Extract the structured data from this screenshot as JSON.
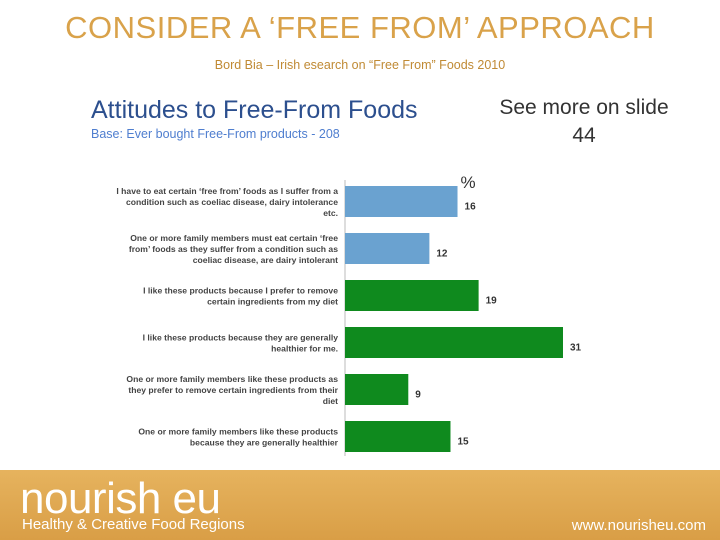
{
  "slide": {
    "title": "CONSIDER A ‘FREE FROM’ APPROACH",
    "subtitle": "Bord Bia – Irish  esearch on “Free From” Foods 2010",
    "side_note_line1": "See more on slide",
    "side_note_line2": "44"
  },
  "chart_data": {
    "type": "bar",
    "orientation": "horizontal",
    "title": "Attitudes to Free-From Foods",
    "subtitle": "Base:  Ever bought Free-From products - 208",
    "unit_label": "%",
    "categories": [
      [
        "I have to eat certain ‘free from’ foods as I suffer from a",
        "condition such as coeliac disease, dairy intolerance",
        "etc."
      ],
      [
        "One or more family members must eat certain ‘free",
        "from’ foods as they suffer from a condition such as",
        "coeliac disease, are dairy intolerant"
      ],
      [
        "I like these products because I prefer to remove",
        "certain ingredients from my diet"
      ],
      [
        "I like these products because they are generally",
        "healthier for me."
      ],
      [
        "One or more family members like these products as",
        "they prefer to remove certain ingredients from their",
        "diet"
      ],
      [
        "One or more family members like these products",
        "because they are generally healthier"
      ]
    ],
    "values": [
      16,
      12,
      19,
      31,
      9,
      15
    ],
    "bar_colors": [
      "#6aa2d0",
      "#6aa2d0",
      "#0f8a1e",
      "#0f8a1e",
      "#0f8a1e",
      "#0f8a1e"
    ],
    "xlim": [
      0,
      40
    ],
    "grid": false,
    "legend": "none"
  },
  "footer": {
    "brand": "nourish eu",
    "tagline": "Healthy & Creative Food Regions",
    "website": "www.nourisheu.com"
  }
}
